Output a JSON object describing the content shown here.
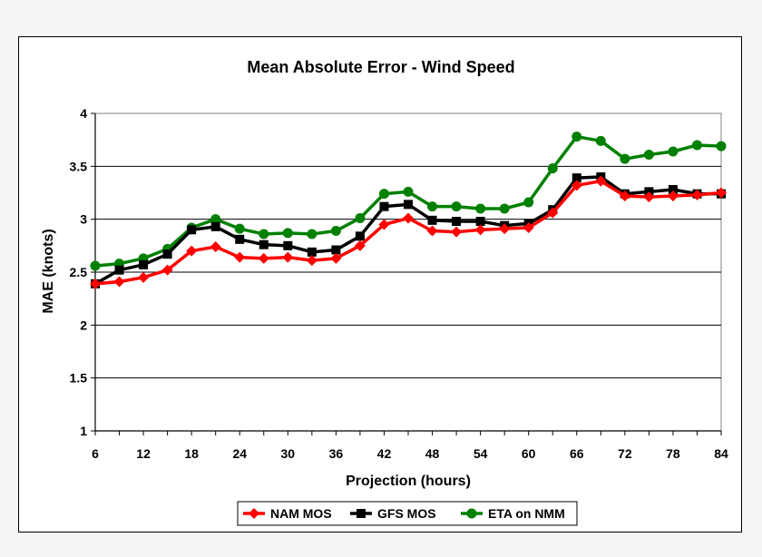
{
  "chart_data": {
    "type": "line",
    "title": "Mean Absolute Error - Wind Speed",
    "xlabel": "Projection (hours)",
    "ylabel": "MAE (knots)",
    "xlim": [
      6,
      84
    ],
    "ylim": [
      1,
      4
    ],
    "xticks": [
      "6",
      "12",
      "18",
      "24",
      "30",
      "36",
      "42",
      "48",
      "54",
      "60",
      "66",
      "72",
      "78",
      "84"
    ],
    "yticks": [
      "1",
      "1.5",
      "2",
      "2.5",
      "3",
      "3.5",
      "4"
    ],
    "grid": "horizontal",
    "legend_position": "bottom",
    "x": [
      6,
      9,
      12,
      15,
      18,
      21,
      24,
      27,
      30,
      33,
      36,
      39,
      42,
      45,
      48,
      51,
      54,
      57,
      60,
      63,
      66,
      69,
      72,
      75,
      78,
      81,
      84
    ],
    "series": [
      {
        "name": "NAM MOS",
        "color": "#ff0000",
        "marker": "diamond",
        "values": [
          2.39,
          2.41,
          2.45,
          2.52,
          2.7,
          2.74,
          2.64,
          2.63,
          2.64,
          2.61,
          2.63,
          2.75,
          2.95,
          3.01,
          2.89,
          2.88,
          2.9,
          2.91,
          2.92,
          3.06,
          3.32,
          3.36,
          3.22,
          3.21,
          3.22,
          3.23,
          3.25
        ]
      },
      {
        "name": "GFS MOS",
        "color": "#000000",
        "marker": "square",
        "values": [
          2.39,
          2.52,
          2.57,
          2.67,
          2.9,
          2.93,
          2.81,
          2.76,
          2.75,
          2.69,
          2.71,
          2.84,
          3.12,
          3.14,
          2.99,
          2.98,
          2.98,
          2.94,
          2.96,
          3.09,
          3.39,
          3.4,
          3.24,
          3.26,
          3.28,
          3.24,
          3.24
        ]
      },
      {
        "name": "ETA on NMM",
        "color": "#008000",
        "marker": "circle",
        "values": [
          2.56,
          2.58,
          2.63,
          2.72,
          2.92,
          3.0,
          2.91,
          2.86,
          2.87,
          2.86,
          2.89,
          3.01,
          3.24,
          3.26,
          3.12,
          3.12,
          3.1,
          3.1,
          3.16,
          3.48,
          3.78,
          3.74,
          3.57,
          3.61,
          3.64,
          3.7,
          3.69
        ]
      }
    ]
  }
}
